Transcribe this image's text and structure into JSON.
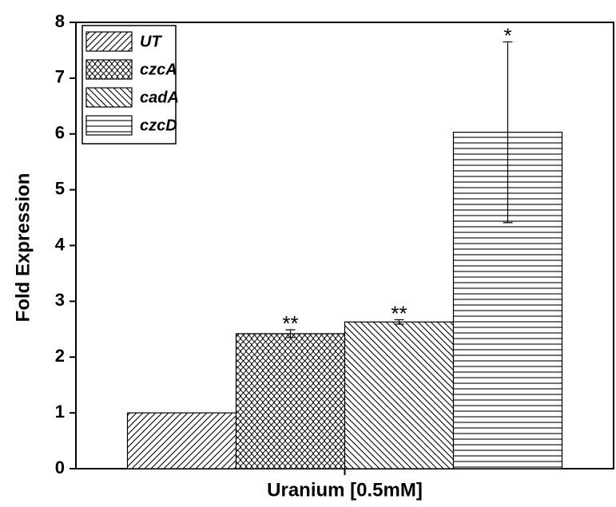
{
  "chart_data": {
    "type": "bar",
    "categories": [
      "Uranium [0.5mM]"
    ],
    "ylabel": "Fold Expression",
    "ylim": [
      0,
      8
    ],
    "yticks": [
      0,
      1,
      2,
      3,
      4,
      5,
      6,
      7,
      8
    ],
    "legend": "upper left",
    "series": [
      {
        "name": "UT",
        "color": "#000000",
        "hatch": "/",
        "values": [
          1.0
        ],
        "errors": [
          0
        ]
      },
      {
        "name": "czcA",
        "color": "#000000",
        "hatch": "x",
        "values": [
          2.42
        ],
        "errors": [
          0.07
        ],
        "annotation": "**"
      },
      {
        "name": "cadA",
        "color": "#000000",
        "hatch": "\\",
        "values": [
          2.63
        ],
        "errors": [
          0.04
        ],
        "annotation": "**"
      },
      {
        "name": "czcD",
        "color": "#000000",
        "hatch": "-",
        "values": [
          6.03
        ],
        "errors": [
          1.62
        ],
        "annotation": "*"
      }
    ]
  }
}
